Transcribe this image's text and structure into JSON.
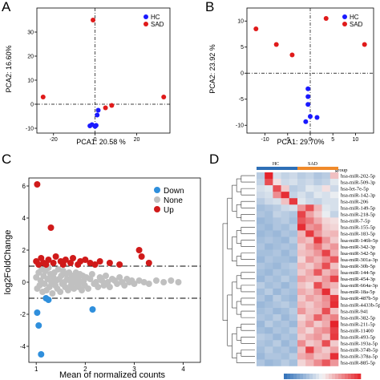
{
  "panels": [
    "A",
    "B",
    "C",
    "D"
  ],
  "colors": {
    "hc": "#1a1aff",
    "sad": "#e01a1a",
    "down": "#2f8fdc",
    "none": "#c0c0c0",
    "up": "#d01a1a",
    "hm_hc_bar": "#2e6fb6",
    "hm_sad_bar": "#f08a2a",
    "hm_low": "#2f6fb8",
    "hm_mid": "#f4f4f4",
    "hm_high": "#e5242b"
  },
  "chart_data": [
    {
      "type": "scatter",
      "panel": "A",
      "xlabel": "PCA1: 20.58 %",
      "ylabel": "PCA2: 16.60%",
      "xlim": [
        -28,
        36
      ],
      "ylim": [
        -12,
        40
      ],
      "xticks": [
        -20,
        0,
        20
      ],
      "yticks": [
        -10,
        0,
        10,
        20,
        30
      ],
      "legend_position": "top-right",
      "series": [
        {
          "name": "HC",
          "color": "#1a1aff",
          "points": [
            [
              -2.5,
              -9
            ],
            [
              -1.5,
              -8.5
            ],
            [
              0,
              -9.2
            ],
            [
              0.5,
              -8.8
            ],
            [
              1,
              -4.5
            ],
            [
              1.5,
              -2.5
            ]
          ]
        },
        {
          "name": "SAD",
          "color": "#e01a1a",
          "points": [
            [
              -1,
              35
            ],
            [
              -25,
              3
            ],
            [
              33,
              3
            ],
            [
              5,
              -1.5
            ],
            [
              8,
              -0.5
            ]
          ]
        }
      ]
    },
    {
      "type": "scatter",
      "panel": "B",
      "xlabel": "PCA1: 29.70%",
      "ylabel": "PCA2: 23.92 %",
      "xlim": [
        -14,
        14
      ],
      "ylim": [
        -11.5,
        12.5
      ],
      "xticks": [
        -10,
        -5,
        0,
        5,
        10
      ],
      "yticks": [
        -10,
        -5,
        0,
        5,
        10
      ],
      "legend_position": "top-right",
      "series": [
        {
          "name": "HC",
          "color": "#1a1aff",
          "points": [
            [
              -0.5,
              -3
            ],
            [
              -0.5,
              -4.5
            ],
            [
              -0.5,
              -6
            ],
            [
              0,
              -8.3
            ],
            [
              -1,
              -9.3
            ],
            [
              1.5,
              -8.5
            ]
          ]
        },
        {
          "name": "SAD",
          "color": "#e01a1a",
          "points": [
            [
              -12,
              8.5
            ],
            [
              -7.5,
              5.5
            ],
            [
              -4,
              3.5
            ],
            [
              3.5,
              10.5
            ],
            [
              12,
              5.5
            ]
          ]
        }
      ]
    },
    {
      "type": "scatter",
      "panel": "C",
      "xlabel": "Mean of normalized counts",
      "ylabel": "log2FoldChange",
      "xlim": [
        0.85,
        4.35
      ],
      "ylim": [
        -5,
        6.5
      ],
      "xticks": [
        1,
        2,
        3,
        4
      ],
      "yticks": [
        -4,
        -2,
        0,
        2,
        4,
        6
      ],
      "thresholds": [
        1,
        -1
      ],
      "legend_position": "top-right",
      "series": [
        {
          "name": "Down",
          "color": "#2f8fdc",
          "points": [
            [
              1.02,
              -1.9
            ],
            [
              1.05,
              -2.7
            ],
            [
              1.1,
              -4.5
            ],
            [
              1.2,
              -1.0
            ],
            [
              1.25,
              -1.1
            ],
            [
              2.15,
              -1.7
            ]
          ]
        },
        {
          "name": "None",
          "color": "#c0c0c0",
          "points": [
            [
              1.0,
              0.3
            ],
            [
              1.02,
              -0.4
            ],
            [
              1.05,
              0.6
            ],
            [
              1.07,
              -0.2
            ],
            [
              1.09,
              0.1
            ],
            [
              1.11,
              0.8
            ],
            [
              1.13,
              -0.6
            ],
            [
              1.15,
              0.4
            ],
            [
              1.17,
              -0.1
            ],
            [
              1.19,
              0.7
            ],
            [
              1.21,
              -0.5
            ],
            [
              1.23,
              0.2
            ],
            [
              1.25,
              0.9
            ],
            [
              1.27,
              -0.3
            ],
            [
              1.29,
              0.5
            ],
            [
              1.31,
              0.0
            ],
            [
              1.33,
              -0.7
            ],
            [
              1.35,
              0.3
            ],
            [
              1.37,
              0.6
            ],
            [
              1.39,
              -0.2
            ],
            [
              1.41,
              0.1
            ],
            [
              1.43,
              -0.4
            ],
            [
              1.45,
              0.8
            ],
            [
              1.47,
              0.2
            ],
            [
              1.49,
              -0.6
            ],
            [
              1.51,
              0.4
            ],
            [
              1.53,
              -0.1
            ],
            [
              1.55,
              0.7
            ],
            [
              1.57,
              0.0
            ],
            [
              1.59,
              -0.3
            ],
            [
              1.61,
              0.5
            ],
            [
              1.63,
              0.2
            ],
            [
              1.65,
              -0.5
            ],
            [
              1.67,
              0.6
            ],
            [
              1.69,
              0.1
            ],
            [
              1.71,
              -0.2
            ],
            [
              1.73,
              0.4
            ],
            [
              1.75,
              0.0
            ],
            [
              1.77,
              -0.4
            ],
            [
              1.79,
              0.3
            ],
            [
              1.81,
              0.6
            ],
            [
              1.83,
              -0.1
            ],
            [
              1.85,
              0.2
            ],
            [
              1.87,
              -0.3
            ],
            [
              1.89,
              0.5
            ],
            [
              1.91,
              0.0
            ],
            [
              1.93,
              -0.5
            ],
            [
              1.95,
              0.4
            ],
            [
              1.97,
              0.1
            ],
            [
              1.99,
              -0.2
            ],
            [
              2.02,
              0.3
            ],
            [
              2.06,
              -0.4
            ],
            [
              2.1,
              0.2
            ],
            [
              2.14,
              0.5
            ],
            [
              2.18,
              -0.1
            ],
            [
              2.22,
              0.0
            ],
            [
              2.26,
              -0.3
            ],
            [
              2.3,
              0.3
            ],
            [
              2.34,
              0.1
            ],
            [
              2.38,
              -0.2
            ],
            [
              2.42,
              0.4
            ],
            [
              2.46,
              0.0
            ],
            [
              2.5,
              -0.3
            ],
            [
              2.55,
              0.2
            ],
            [
              2.6,
              0.1
            ],
            [
              2.65,
              -0.1
            ],
            [
              2.7,
              0.3
            ],
            [
              2.75,
              0.0
            ],
            [
              2.8,
              -0.2
            ],
            [
              2.85,
              0.2
            ],
            [
              2.9,
              0.0
            ],
            [
              2.95,
              0.1
            ],
            [
              3.0,
              -0.1
            ],
            [
              3.1,
              0.1
            ],
            [
              3.2,
              0.0
            ],
            [
              3.3,
              -0.1
            ],
            [
              3.45,
              0.1
            ],
            [
              3.6,
              0.0
            ],
            [
              3.75,
              0.1
            ],
            [
              3.9,
              0.0
            ]
          ]
        },
        {
          "name": "Up",
          "color": "#d01a1a",
          "points": [
            [
              1.02,
              6.1
            ],
            [
              1.3,
              3.4
            ],
            [
              1.0,
              1.3
            ],
            [
              1.05,
              1.1
            ],
            [
              1.1,
              1.5
            ],
            [
              1.15,
              1.2
            ],
            [
              1.2,
              1.1
            ],
            [
              1.25,
              1.4
            ],
            [
              1.35,
              1.2
            ],
            [
              1.4,
              1.6
            ],
            [
              1.5,
              1.3
            ],
            [
              1.55,
              1.1
            ],
            [
              1.6,
              1.4
            ],
            [
              1.7,
              1.2
            ],
            [
              1.75,
              1.5
            ],
            [
              1.85,
              1.1
            ],
            [
              1.9,
              1.3
            ],
            [
              2.0,
              1.4
            ],
            [
              2.1,
              1.2
            ],
            [
              2.2,
              1.1
            ],
            [
              2.3,
              1.3
            ],
            [
              2.5,
              1.2
            ],
            [
              2.7,
              1.1
            ],
            [
              3.1,
              2.0
            ],
            [
              3.15,
              1.6
            ],
            [
              3.3,
              1.2
            ]
          ]
        }
      ]
    },
    {
      "type": "heatmap",
      "panel": "D",
      "group_header": "group",
      "groups": [
        {
          "label": "HC",
          "count": 5,
          "color": "#2e6fb6"
        },
        {
          "label": "SAD",
          "count": 5,
          "color": "#f08a2a"
        }
      ],
      "rows": [
        "hsa-miR-202-5p",
        "hsa-miR-509-3p",
        "hsa-let-7e-5p",
        "hsa-miR-142-3p",
        "hsa-miR-206",
        "hsa-miR-149-5p",
        "hsa-miR-218-5p",
        "hsa-miR-7-5p",
        "hsa-miR-155-5p",
        "hsa-miR-183-5p",
        "hsa-miR-146b-5p",
        "hsa-miR-342-3p",
        "hsa-miR-342-5p",
        "hsa-miR-301a-3p",
        "hsa-miR-30b-5p",
        "hsa-miR-144-5p",
        "hsa-miR-454-3p",
        "hsa-miR-664a-3p",
        "hsa-miR-18a-5p",
        "hsa-miR-487b-5p",
        "hsa-miR-4433b-5p",
        "hsa-miR-941",
        "hsa-miR-382-5p",
        "hsa-miR-211-5p",
        "hsa-miR-11400",
        "hsa-miR-493-5p",
        "hsa-miR-193a-5p",
        "hsa-miR-374b-5p",
        "hsa-miR-378a-5p",
        "hsa-miR-885-5p"
      ],
      "values": [
        [
          -0.6,
          2.2,
          -0.3,
          -0.5,
          -0.4,
          -0.6,
          -0.5,
          -0.7,
          -0.6,
          0.5
        ],
        [
          -0.5,
          1.6,
          0.2,
          -0.4,
          -0.3,
          -0.5,
          -0.4,
          -0.6,
          -0.5,
          -0.2
        ],
        [
          -0.3,
          -0.2,
          1.6,
          0.4,
          -0.6,
          -0.5,
          -0.2,
          -0.3,
          0.2,
          -0.4
        ],
        [
          -0.4,
          -0.3,
          1.0,
          1.9,
          -0.5,
          -0.3,
          -0.5,
          -0.2,
          -0.3,
          -0.1
        ],
        [
          -0.6,
          -0.4,
          -0.3,
          0.5,
          1.8,
          -0.2,
          -0.4,
          -0.5,
          -0.3,
          -0.3
        ],
        [
          -0.8,
          -0.7,
          -0.6,
          -0.4,
          -0.3,
          0.9,
          1.6,
          0.6,
          -0.2,
          -0.3
        ],
        [
          -0.7,
          -0.8,
          -0.5,
          -0.6,
          -0.7,
          1.7,
          0.8,
          0.4,
          -0.1,
          -0.5
        ],
        [
          -0.9,
          -0.8,
          -0.7,
          -0.6,
          -0.8,
          1.5,
          1.2,
          0.7,
          0.3,
          0.2
        ],
        [
          -0.8,
          -0.9,
          -0.7,
          -0.8,
          -0.6,
          1.9,
          0.9,
          1.1,
          0.4,
          0.3
        ],
        [
          -0.9,
          -0.8,
          -0.9,
          -0.7,
          -0.8,
          0.6,
          1.8,
          0.9,
          0.5,
          0.6
        ],
        [
          -0.8,
          -0.7,
          -0.8,
          -0.9,
          -0.6,
          0.7,
          0.5,
          1.8,
          0.9,
          0.4
        ],
        [
          -0.7,
          -0.9,
          -0.8,
          -0.7,
          -0.8,
          0.4,
          0.8,
          1.2,
          0.6,
          0.9
        ],
        [
          -0.8,
          -0.8,
          -0.7,
          -0.9,
          -0.7,
          0.5,
          0.6,
          0.9,
          1.7,
          0.7
        ],
        [
          -0.9,
          -0.7,
          -0.8,
          -0.8,
          -0.9,
          0.3,
          0.9,
          0.6,
          1.0,
          1.5
        ],
        [
          -0.7,
          -0.8,
          -0.9,
          -0.7,
          -0.6,
          0.6,
          0.4,
          0.8,
          1.6,
          0.5
        ],
        [
          -0.8,
          -0.9,
          -0.7,
          -0.8,
          -0.7,
          0.4,
          0.7,
          1.5,
          0.6,
          0.9
        ],
        [
          -0.9,
          -0.7,
          -0.8,
          -0.6,
          -0.8,
          0.8,
          0.6,
          0.5,
          0.9,
          1.7
        ],
        [
          -0.6,
          -0.8,
          -0.7,
          -0.9,
          -0.7,
          0.5,
          0.3,
          1.6,
          0.8,
          0.6
        ],
        [
          -0.8,
          -0.6,
          -0.9,
          -0.7,
          -0.8,
          0.7,
          0.5,
          0.9,
          1.9,
          0.4
        ],
        [
          -0.7,
          -0.9,
          -0.6,
          -0.8,
          -0.9,
          0.4,
          0.8,
          0.6,
          1.0,
          1.8
        ],
        [
          -0.9,
          -0.8,
          -0.7,
          -0.6,
          -0.8,
          0.6,
          0.4,
          0.7,
          0.9,
          1.9
        ],
        [
          -0.8,
          -0.7,
          -0.9,
          -0.8,
          -0.6,
          0.9,
          0.5,
          0.6,
          1.6,
          0.5
        ],
        [
          -0.7,
          -0.8,
          -0.6,
          -0.9,
          -0.7,
          0.3,
          0.6,
          1.4,
          0.8,
          1.1
        ],
        [
          -0.9,
          -0.6,
          -0.8,
          -0.7,
          -0.9,
          0.5,
          0.9,
          0.4,
          0.7,
          2.0
        ],
        [
          -0.8,
          -0.9,
          -0.7,
          -0.8,
          -0.6,
          0.6,
          0.3,
          0.8,
          1.0,
          1.7
        ],
        [
          -0.6,
          -0.7,
          -0.9,
          -0.7,
          -0.8,
          0.4,
          0.7,
          0.9,
          0.5,
          1.8
        ],
        [
          -0.7,
          -0.8,
          -0.6,
          -0.9,
          -0.7,
          1.0,
          0.4,
          0.6,
          1.6,
          0.4
        ],
        [
          -0.8,
          -0.6,
          -0.8,
          -0.7,
          -0.9,
          0.5,
          1.7,
          0.7,
          0.4,
          0.8
        ],
        [
          -0.9,
          -0.7,
          -0.7,
          -0.8,
          -0.6,
          0.7,
          0.9,
          0.5,
          0.6,
          1.9
        ],
        [
          -0.7,
          -0.9,
          -0.8,
          -0.6,
          -0.8,
          0.3,
          0.6,
          1.0,
          1.5,
          0.9
        ]
      ],
      "color_range": [
        -2,
        2
      ]
    }
  ]
}
